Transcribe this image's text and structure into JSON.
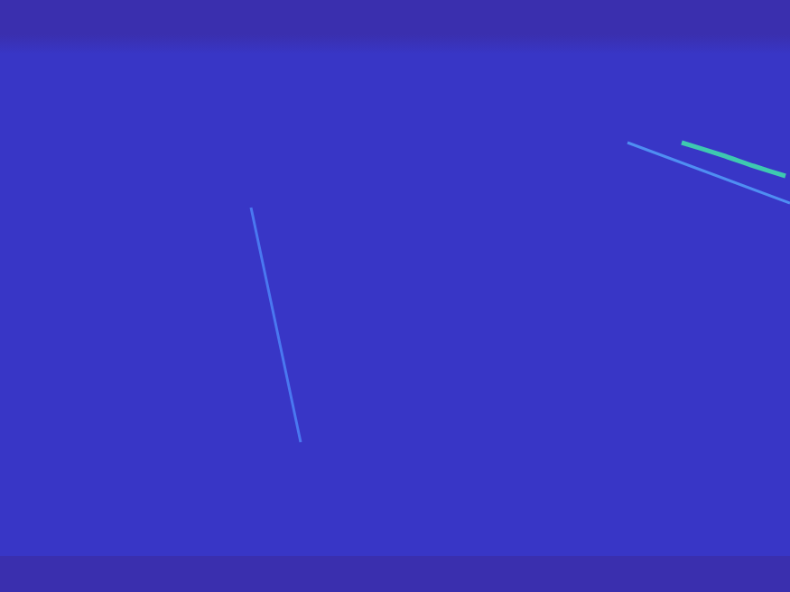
{
  "chart_data": {
    "type": "line",
    "grid": false,
    "tick_labels": false,
    "xlim": [
      0,
      875
    ],
    "ylim": [
      0,
      656
    ],
    "series": [
      {
        "color": "#4a78f0",
        "x": [
          278,
          333
        ],
        "values": [
          426,
          166
        ]
      },
      {
        "color": "#4f8ef2",
        "x": [
          695,
          875
        ],
        "values": [
          498,
          431
        ]
      },
      {
        "color": "#3ec9b0",
        "x": [
          755,
          800,
          835,
          870
        ],
        "values": [
          498,
          484,
          472,
          461
        ]
      }
    ]
  }
}
